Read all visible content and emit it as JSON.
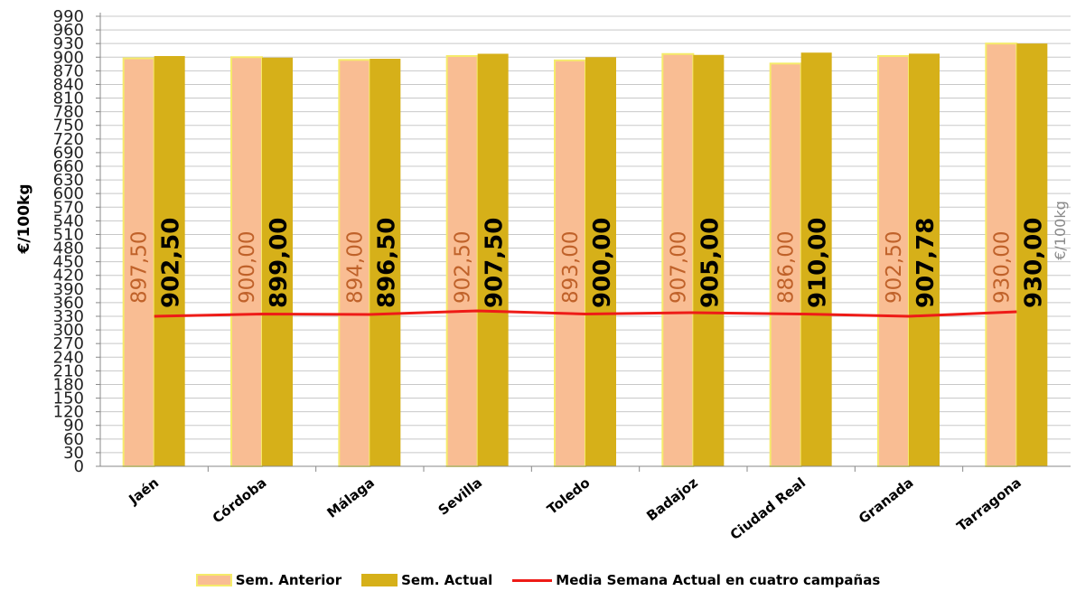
{
  "chart_data": {
    "type": "bar",
    "ylabel": "€/100kg",
    "unit_note": "€/100kg",
    "ylim": [
      0,
      990
    ],
    "ytick_step": 30,
    "categories": [
      "Jaén",
      "Córdoba",
      "Málaga",
      "Sevilla",
      "Toledo",
      "Badajoz",
      "Ciudad Real",
      "Granada",
      "Tarragona"
    ],
    "series": [
      {
        "name": "Sem. Anterior",
        "type": "bar",
        "color": "#F9BD93",
        "border_color": "#F5EB6A",
        "label_color": "#C0622A",
        "values": [
          897.5,
          900.0,
          894.0,
          902.5,
          893.0,
          907.0,
          886.0,
          902.5,
          930.0
        ],
        "labels": [
          "897,50",
          "900,00",
          "894,00",
          "902,50",
          "893,00",
          "907,00",
          "886,00",
          "902,50",
          "930,00"
        ]
      },
      {
        "name": "Sem. Actual",
        "type": "bar",
        "color": "#D6B019",
        "label_color": "#000000",
        "values": [
          902.5,
          899.0,
          896.5,
          907.5,
          900.0,
          905.0,
          910.0,
          907.78,
          930.0
        ],
        "labels": [
          "902,50",
          "899,00",
          "896,50",
          "907,50",
          "900,00",
          "905,00",
          "910,00",
          "907,78",
          "930,00"
        ]
      },
      {
        "name": "Media Semana Actual en cuatro campañas",
        "type": "line",
        "color": "#EE1B17",
        "values": [
          330,
          335,
          334,
          342,
          335,
          338,
          335,
          330,
          340
        ]
      }
    ],
    "grid": true,
    "legend_position": "bottom"
  }
}
